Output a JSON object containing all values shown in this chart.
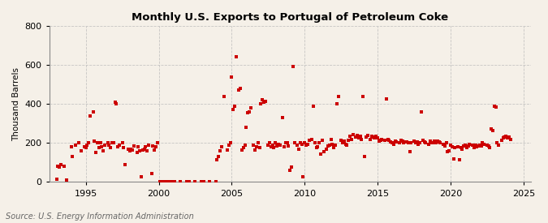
{
  "title": "Monthly U.S. Exports to Portugal of Petroleum Coke",
  "ylabel": "Thousand Barrels",
  "source_text": "Source: U.S. Energy Information Administration",
  "background_color": "#f5f0e8",
  "dot_color": "#cc0000",
  "grid_color": "#bbbbbb",
  "ylim": [
    0,
    800
  ],
  "yticks": [
    0,
    200,
    400,
    600,
    800
  ],
  "xlim": [
    1992.5,
    2025.5
  ],
  "xticks": [
    1995,
    2000,
    2005,
    2010,
    2015,
    2020,
    2025
  ],
  "data": [
    [
      1993.0,
      15
    ],
    [
      1993.1,
      80
    ],
    [
      1993.2,
      75
    ],
    [
      1993.3,
      90
    ],
    [
      1993.5,
      80
    ],
    [
      1993.7,
      10
    ],
    [
      1994.0,
      180
    ],
    [
      1994.1,
      130
    ],
    [
      1994.3,
      190
    ],
    [
      1994.5,
      200
    ],
    [
      1994.7,
      160
    ],
    [
      1994.9,
      180
    ],
    [
      1995.0,
      175
    ],
    [
      1995.1,
      190
    ],
    [
      1995.2,
      200
    ],
    [
      1995.3,
      340
    ],
    [
      1995.5,
      360
    ],
    [
      1995.6,
      210
    ],
    [
      1995.7,
      150
    ],
    [
      1995.8,
      200
    ],
    [
      1995.9,
      175
    ],
    [
      1996.0,
      200
    ],
    [
      1996.1,
      180
    ],
    [
      1996.2,
      160
    ],
    [
      1996.3,
      190
    ],
    [
      1996.5,
      200
    ],
    [
      1996.6,
      190
    ],
    [
      1996.7,
      175
    ],
    [
      1996.8,
      200
    ],
    [
      1996.9,
      200
    ],
    [
      1997.0,
      410
    ],
    [
      1997.1,
      400
    ],
    [
      1997.2,
      180
    ],
    [
      1997.3,
      190
    ],
    [
      1997.5,
      200
    ],
    [
      1997.6,
      175
    ],
    [
      1997.7,
      90
    ],
    [
      1997.9,
      170
    ],
    [
      1998.0,
      160
    ],
    [
      1998.1,
      170
    ],
    [
      1998.2,
      165
    ],
    [
      1998.3,
      185
    ],
    [
      1998.5,
      150
    ],
    [
      1998.6,
      180
    ],
    [
      1998.7,
      160
    ],
    [
      1998.8,
      25
    ],
    [
      1998.9,
      165
    ],
    [
      1999.0,
      170
    ],
    [
      1999.1,
      180
    ],
    [
      1999.2,
      160
    ],
    [
      1999.3,
      190
    ],
    [
      1999.5,
      45
    ],
    [
      1999.6,
      185
    ],
    [
      1999.7,
      165
    ],
    [
      1999.8,
      180
    ],
    [
      1999.9,
      200
    ],
    [
      2000.1,
      2
    ],
    [
      2000.3,
      2
    ],
    [
      2000.5,
      2
    ],
    [
      2000.7,
      2
    ],
    [
      2000.9,
      2
    ],
    [
      2001.1,
      2
    ],
    [
      2001.5,
      2
    ],
    [
      2001.9,
      2
    ],
    [
      2002.1,
      2
    ],
    [
      2002.5,
      2
    ],
    [
      2002.9,
      2
    ],
    [
      2003.1,
      2
    ],
    [
      2003.5,
      2
    ],
    [
      2003.9,
      2
    ],
    [
      2004.0,
      115
    ],
    [
      2004.1,
      130
    ],
    [
      2004.2,
      160
    ],
    [
      2004.3,
      180
    ],
    [
      2004.5,
      440
    ],
    [
      2004.7,
      165
    ],
    [
      2004.8,
      190
    ],
    [
      2004.9,
      200
    ],
    [
      2005.0,
      540
    ],
    [
      2005.1,
      370
    ],
    [
      2005.2,
      390
    ],
    [
      2005.3,
      640
    ],
    [
      2005.5,
      470
    ],
    [
      2005.6,
      480
    ],
    [
      2005.7,
      165
    ],
    [
      2005.8,
      175
    ],
    [
      2005.9,
      190
    ],
    [
      2006.0,
      280
    ],
    [
      2006.1,
      355
    ],
    [
      2006.2,
      360
    ],
    [
      2006.3,
      380
    ],
    [
      2006.5,
      190
    ],
    [
      2006.6,
      165
    ],
    [
      2006.7,
      180
    ],
    [
      2006.8,
      200
    ],
    [
      2006.9,
      175
    ],
    [
      2007.0,
      400
    ],
    [
      2007.1,
      420
    ],
    [
      2007.2,
      410
    ],
    [
      2007.3,
      415
    ],
    [
      2007.5,
      190
    ],
    [
      2007.6,
      200
    ],
    [
      2007.7,
      180
    ],
    [
      2007.8,
      190
    ],
    [
      2007.9,
      175
    ],
    [
      2008.0,
      200
    ],
    [
      2008.1,
      185
    ],
    [
      2008.2,
      195
    ],
    [
      2008.3,
      190
    ],
    [
      2008.5,
      330
    ],
    [
      2008.6,
      180
    ],
    [
      2008.7,
      200
    ],
    [
      2008.8,
      200
    ],
    [
      2008.9,
      185
    ],
    [
      2009.0,
      60
    ],
    [
      2009.1,
      75
    ],
    [
      2009.2,
      590
    ],
    [
      2009.3,
      200
    ],
    [
      2009.5,
      190
    ],
    [
      2009.6,
      170
    ],
    [
      2009.7,
      200
    ],
    [
      2009.8,
      195
    ],
    [
      2009.9,
      25
    ],
    [
      2010.0,
      200
    ],
    [
      2010.1,
      190
    ],
    [
      2010.2,
      195
    ],
    [
      2010.3,
      215
    ],
    [
      2010.5,
      220
    ],
    [
      2010.6,
      390
    ],
    [
      2010.7,
      200
    ],
    [
      2010.8,
      175
    ],
    [
      2010.9,
      180
    ],
    [
      2011.0,
      200
    ],
    [
      2011.1,
      145
    ],
    [
      2011.2,
      215
    ],
    [
      2011.3,
      155
    ],
    [
      2011.5,
      170
    ],
    [
      2011.6,
      185
    ],
    [
      2011.7,
      190
    ],
    [
      2011.8,
      220
    ],
    [
      2011.9,
      195
    ],
    [
      2012.0,
      175
    ],
    [
      2012.1,
      190
    ],
    [
      2012.2,
      400
    ],
    [
      2012.3,
      440
    ],
    [
      2012.5,
      215
    ],
    [
      2012.6,
      200
    ],
    [
      2012.7,
      210
    ],
    [
      2012.8,
      195
    ],
    [
      2012.9,
      190
    ],
    [
      2013.0,
      215
    ],
    [
      2013.1,
      235
    ],
    [
      2013.2,
      220
    ],
    [
      2013.3,
      245
    ],
    [
      2013.5,
      230
    ],
    [
      2013.6,
      240
    ],
    [
      2013.7,
      225
    ],
    [
      2013.8,
      235
    ],
    [
      2013.9,
      220
    ],
    [
      2014.0,
      440
    ],
    [
      2014.1,
      130
    ],
    [
      2014.2,
      230
    ],
    [
      2014.3,
      240
    ],
    [
      2014.5,
      220
    ],
    [
      2014.6,
      235
    ],
    [
      2014.7,
      230
    ],
    [
      2014.8,
      225
    ],
    [
      2014.9,
      235
    ],
    [
      2015.0,
      225
    ],
    [
      2015.1,
      210
    ],
    [
      2015.2,
      215
    ],
    [
      2015.3,
      220
    ],
    [
      2015.5,
      215
    ],
    [
      2015.6,
      425
    ],
    [
      2015.7,
      220
    ],
    [
      2015.8,
      215
    ],
    [
      2015.9,
      205
    ],
    [
      2016.0,
      200
    ],
    [
      2016.1,
      195
    ],
    [
      2016.2,
      210
    ],
    [
      2016.3,
      205
    ],
    [
      2016.5,
      200
    ],
    [
      2016.6,
      215
    ],
    [
      2016.7,
      210
    ],
    [
      2016.8,
      200
    ],
    [
      2016.9,
      205
    ],
    [
      2017.0,
      205
    ],
    [
      2017.1,
      200
    ],
    [
      2017.2,
      155
    ],
    [
      2017.3,
      200
    ],
    [
      2017.5,
      210
    ],
    [
      2017.6,
      200
    ],
    [
      2017.7,
      205
    ],
    [
      2017.8,
      195
    ],
    [
      2017.9,
      200
    ],
    [
      2018.0,
      360
    ],
    [
      2018.1,
      215
    ],
    [
      2018.2,
      205
    ],
    [
      2018.3,
      200
    ],
    [
      2018.5,
      195
    ],
    [
      2018.6,
      210
    ],
    [
      2018.7,
      200
    ],
    [
      2018.8,
      200
    ],
    [
      2018.9,
      210
    ],
    [
      2019.0,
      200
    ],
    [
      2019.1,
      210
    ],
    [
      2019.2,
      205
    ],
    [
      2019.3,
      200
    ],
    [
      2019.5,
      195
    ],
    [
      2019.6,
      185
    ],
    [
      2019.7,
      200
    ],
    [
      2019.8,
      155
    ],
    [
      2019.9,
      160
    ],
    [
      2020.0,
      190
    ],
    [
      2020.1,
      180
    ],
    [
      2020.2,
      120
    ],
    [
      2020.3,
      175
    ],
    [
      2020.5,
      180
    ],
    [
      2020.6,
      115
    ],
    [
      2020.7,
      175
    ],
    [
      2020.8,
      170
    ],
    [
      2020.9,
      185
    ],
    [
      2021.0,
      190
    ],
    [
      2021.1,
      175
    ],
    [
      2021.2,
      185
    ],
    [
      2021.3,
      195
    ],
    [
      2021.5,
      190
    ],
    [
      2021.6,
      175
    ],
    [
      2021.7,
      190
    ],
    [
      2021.8,
      180
    ],
    [
      2021.9,
      185
    ],
    [
      2022.0,
      190
    ],
    [
      2022.1,
      185
    ],
    [
      2022.2,
      200
    ],
    [
      2022.3,
      195
    ],
    [
      2022.5,
      190
    ],
    [
      2022.6,
      185
    ],
    [
      2022.7,
      175
    ],
    [
      2022.8,
      270
    ],
    [
      2022.9,
      265
    ],
    [
      2023.0,
      390
    ],
    [
      2023.1,
      385
    ],
    [
      2023.2,
      200
    ],
    [
      2023.3,
      190
    ],
    [
      2023.5,
      215
    ],
    [
      2023.6,
      225
    ],
    [
      2023.7,
      230
    ],
    [
      2023.8,
      235
    ],
    [
      2023.9,
      225
    ],
    [
      2024.0,
      230
    ],
    [
      2024.1,
      220
    ]
  ]
}
